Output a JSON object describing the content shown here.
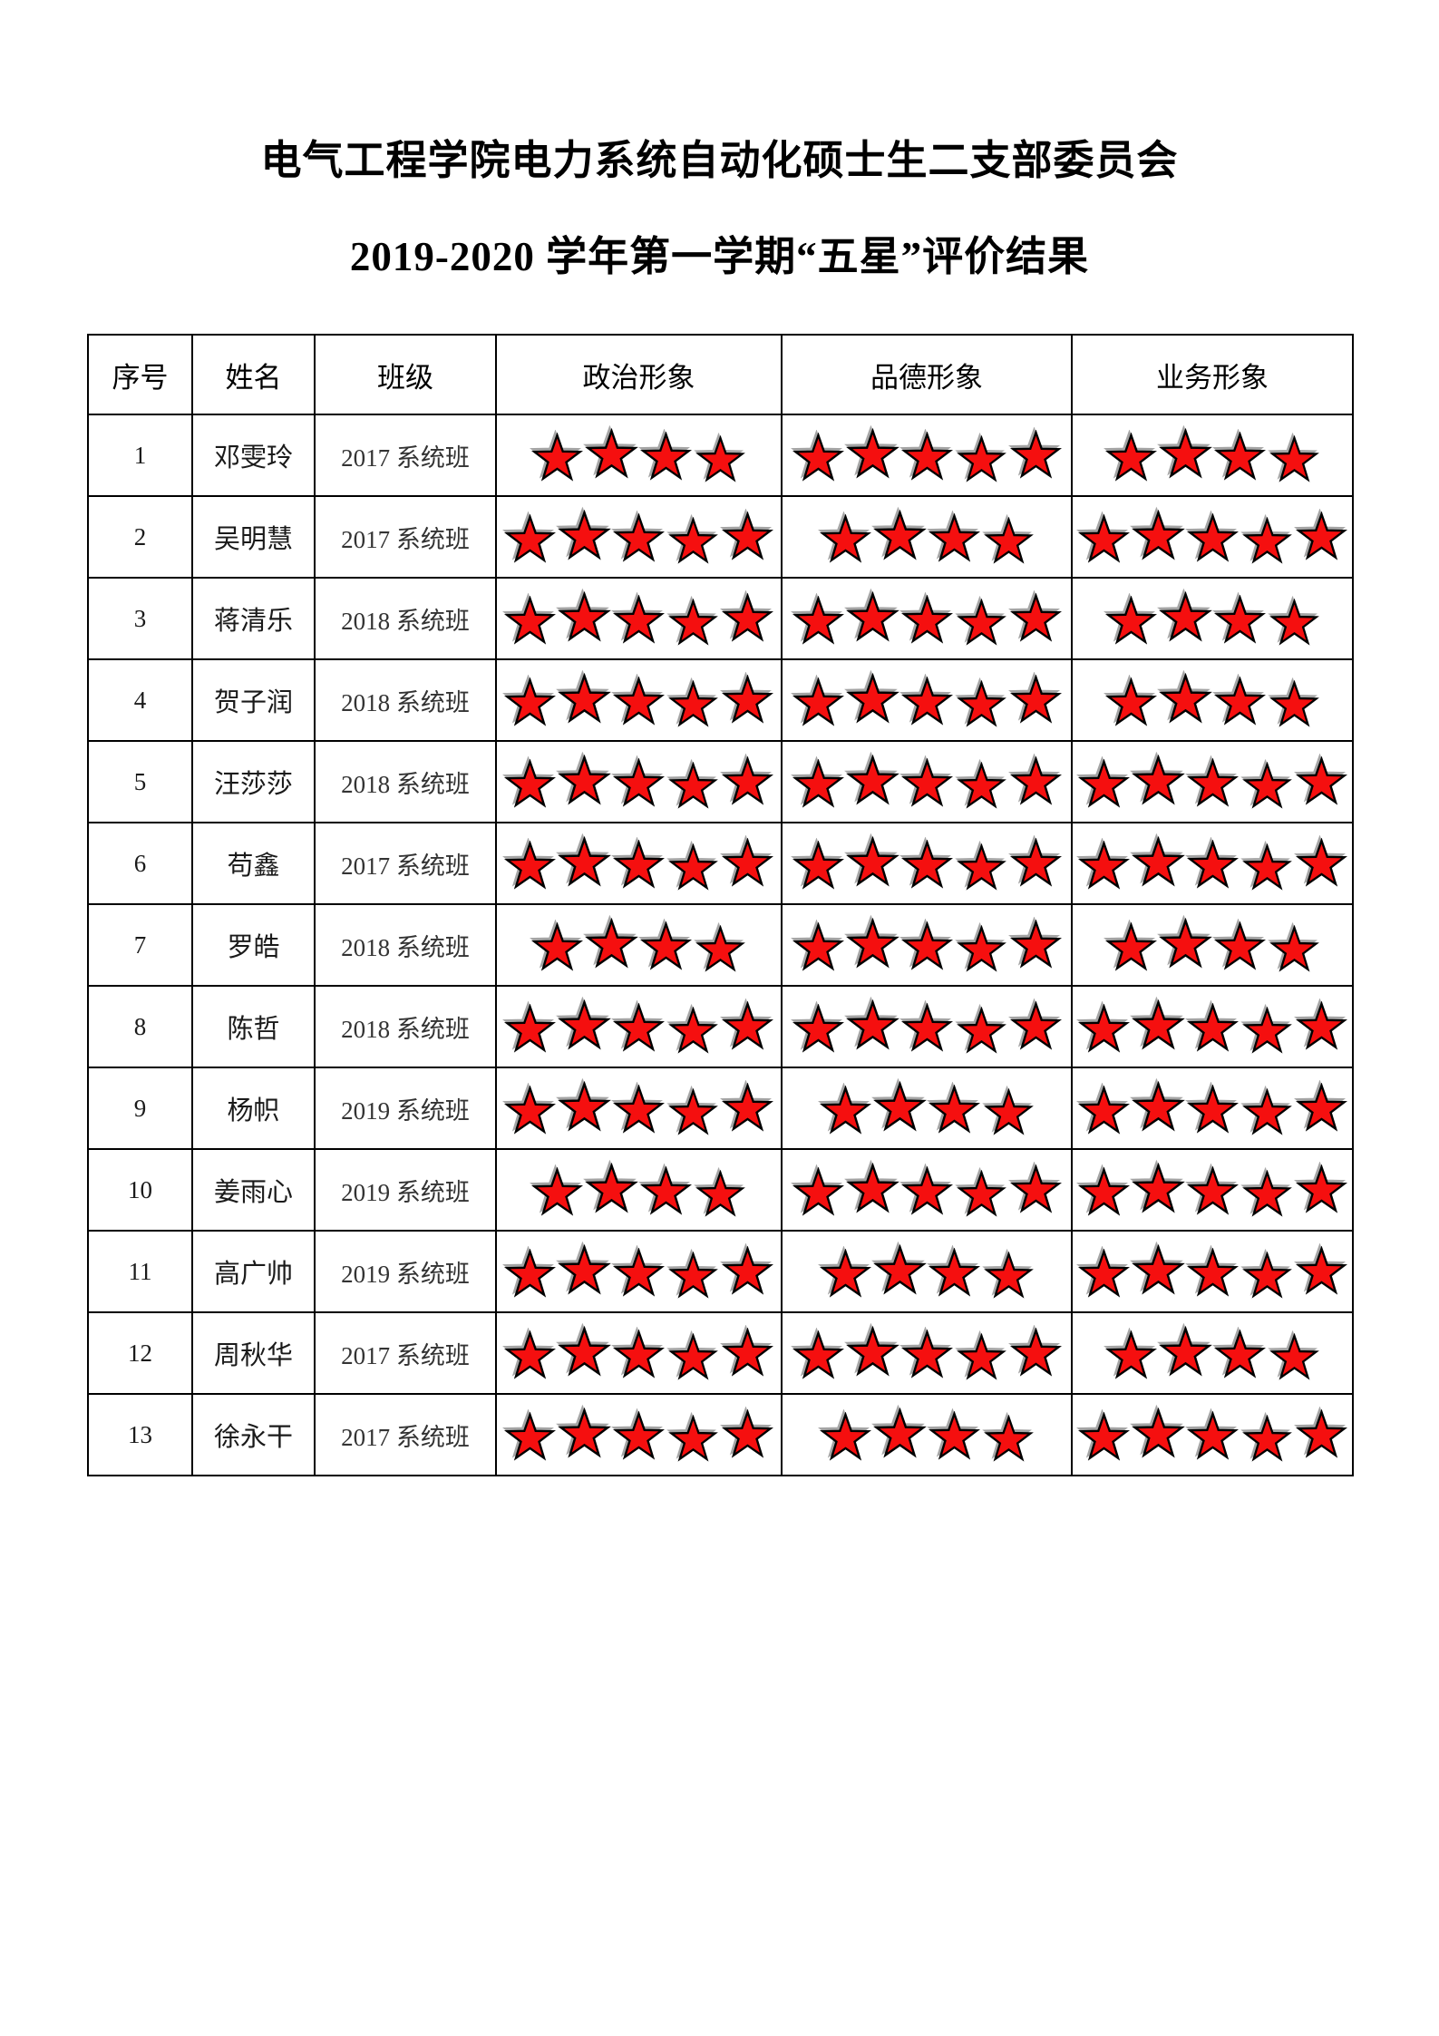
{
  "page": {
    "title_line1": "电气工程学院电力系统自动化硕士生二支部委员会",
    "title_line2": "2019-2020 学年第一学期“五星”评价结果"
  },
  "table": {
    "headers": {
      "index": "序号",
      "name": "姓名",
      "class": "班级",
      "political": "政治形象",
      "moral": "品德形象",
      "professional": "业务形象"
    },
    "star_fill_color": "#f50f0f",
    "star_outline_color": "#000000",
    "rows": [
      {
        "index": "1",
        "name": "邓雯玲",
        "class": "2017 系统班",
        "political": 4,
        "moral": 5,
        "professional": 4
      },
      {
        "index": "2",
        "name": "吴明慧",
        "class": "2017 系统班",
        "political": 5,
        "moral": 4,
        "professional": 5
      },
      {
        "index": "3",
        "name": "蒋清乐",
        "class": "2018 系统班",
        "political": 5,
        "moral": 5,
        "professional": 4
      },
      {
        "index": "4",
        "name": "贺子润",
        "class": "2018 系统班",
        "political": 5,
        "moral": 5,
        "professional": 4
      },
      {
        "index": "5",
        "name": "汪莎莎",
        "class": "2018 系统班",
        "political": 5,
        "moral": 5,
        "professional": 5
      },
      {
        "index": "6",
        "name": "苟鑫",
        "class": "2017 系统班",
        "political": 5,
        "moral": 5,
        "professional": 5
      },
      {
        "index": "7",
        "name": "罗皓",
        "class": "2018 系统班",
        "political": 4,
        "moral": 5,
        "professional": 4
      },
      {
        "index": "8",
        "name": "陈哲",
        "class": "2018 系统班",
        "political": 5,
        "moral": 5,
        "professional": 5
      },
      {
        "index": "9",
        "name": "杨帜",
        "class": "2019 系统班",
        "political": 5,
        "moral": 4,
        "professional": 5
      },
      {
        "index": "10",
        "name": "姜雨心",
        "class": "2019 系统班",
        "political": 4,
        "moral": 5,
        "professional": 5
      },
      {
        "index": "11",
        "name": "高广帅",
        "class": "2019 系统班",
        "political": 5,
        "moral": 4,
        "professional": 5
      },
      {
        "index": "12",
        "name": "周秋华",
        "class": "2017 系统班",
        "political": 5,
        "moral": 5,
        "professional": 4
      },
      {
        "index": "13",
        "name": "徐永干",
        "class": "2017 系统班",
        "political": 5,
        "moral": 4,
        "professional": 5
      }
    ]
  }
}
